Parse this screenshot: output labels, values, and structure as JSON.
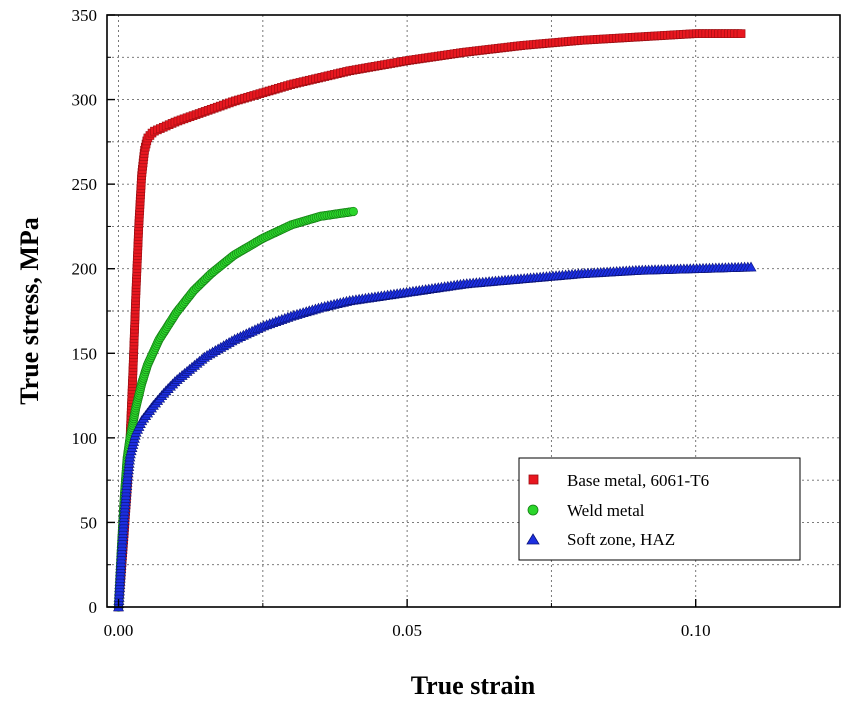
{
  "chart_data": {
    "type": "scatter",
    "xlabel": "True strain",
    "ylabel": "True stress, MPa",
    "xlim": [
      -0.002,
      0.125
    ],
    "ylim": [
      0,
      350
    ],
    "xticks": [
      0.0,
      0.05,
      0.1
    ],
    "xtick_labels": [
      "0.00",
      "0.05",
      "0.10"
    ],
    "yticks": [
      0,
      50,
      100,
      150,
      200,
      250,
      300,
      350
    ],
    "ytick_labels": [
      "0",
      "50",
      "100",
      "150",
      "200",
      "250",
      "300",
      "350"
    ],
    "grid": true,
    "legend_position": "bottom-right",
    "series": [
      {
        "name": "Base metal, 6061-T6",
        "marker": "square",
        "color": "#e8171f",
        "curve": [
          [
            0.0,
            0
          ],
          [
            0.0005,
            22
          ],
          [
            0.001,
            45
          ],
          [
            0.0015,
            70
          ],
          [
            0.002,
            100
          ],
          [
            0.0025,
            140
          ],
          [
            0.003,
            185
          ],
          [
            0.0035,
            225
          ],
          [
            0.004,
            255
          ],
          [
            0.0045,
            270
          ],
          [
            0.005,
            277
          ],
          [
            0.006,
            281
          ],
          [
            0.008,
            284
          ],
          [
            0.01,
            287
          ],
          [
            0.015,
            293
          ],
          [
            0.02,
            299
          ],
          [
            0.025,
            304
          ],
          [
            0.03,
            309
          ],
          [
            0.04,
            317
          ],
          [
            0.05,
            323
          ],
          [
            0.06,
            328
          ],
          [
            0.07,
            332
          ],
          [
            0.08,
            335
          ],
          [
            0.09,
            337
          ],
          [
            0.1,
            339
          ],
          [
            0.108,
            339
          ]
        ]
      },
      {
        "name": "Weld metal",
        "marker": "circle",
        "color": "#2bd62b",
        "curve": [
          [
            0.0,
            0
          ],
          [
            0.0005,
            35
          ],
          [
            0.001,
            65
          ],
          [
            0.0015,
            88
          ],
          [
            0.002,
            100
          ],
          [
            0.003,
            118
          ],
          [
            0.004,
            132
          ],
          [
            0.005,
            143
          ],
          [
            0.007,
            158
          ],
          [
            0.01,
            174
          ],
          [
            0.013,
            187
          ],
          [
            0.016,
            197
          ],
          [
            0.02,
            208
          ],
          [
            0.025,
            218
          ],
          [
            0.03,
            226
          ],
          [
            0.035,
            231
          ],
          [
            0.041,
            234
          ]
        ]
      },
      {
        "name": "Soft zone, HAZ",
        "marker": "triangle",
        "color": "#1c2fe0",
        "curve": [
          [
            0.0,
            0
          ],
          [
            0.0005,
            30
          ],
          [
            0.001,
            55
          ],
          [
            0.0015,
            75
          ],
          [
            0.002,
            90
          ],
          [
            0.003,
            103
          ],
          [
            0.004,
            110
          ],
          [
            0.006,
            119
          ],
          [
            0.008,
            127
          ],
          [
            0.01,
            134
          ],
          [
            0.015,
            148
          ],
          [
            0.02,
            158
          ],
          [
            0.025,
            166
          ],
          [
            0.03,
            172
          ],
          [
            0.035,
            177
          ],
          [
            0.04,
            181
          ],
          [
            0.05,
            186
          ],
          [
            0.06,
            191
          ],
          [
            0.07,
            194
          ],
          [
            0.08,
            197
          ],
          [
            0.09,
            199
          ],
          [
            0.1,
            200
          ],
          [
            0.11,
            201
          ]
        ]
      }
    ]
  }
}
